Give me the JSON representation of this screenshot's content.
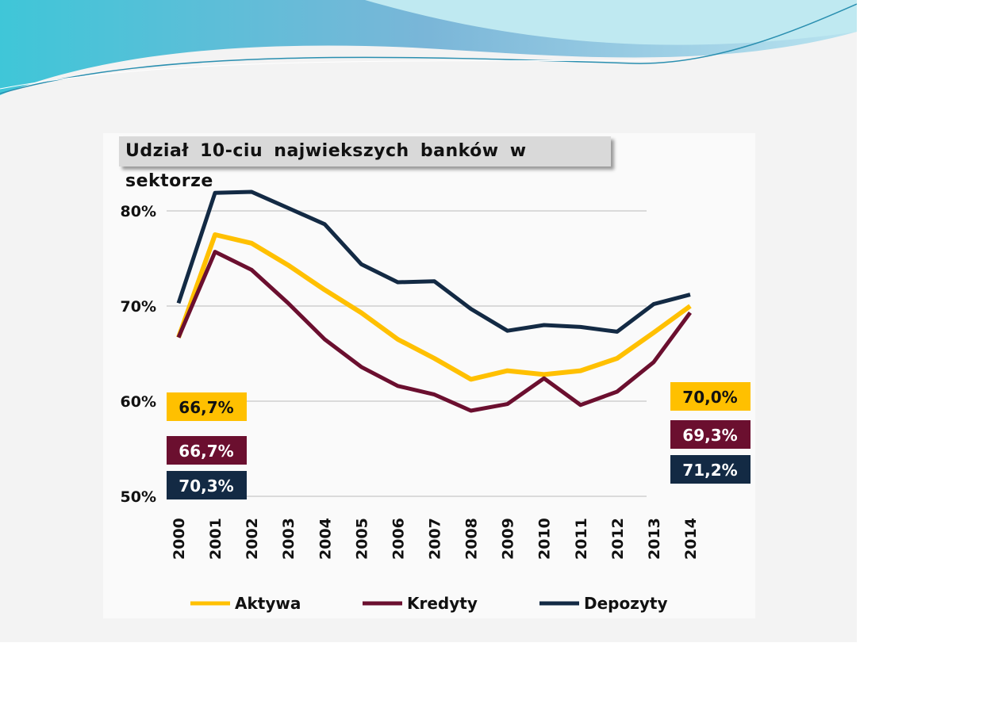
{
  "chart_data": {
    "type": "line",
    "title": "Udział 10-ciu najwiekszych banków w sektorze",
    "x": [
      "2000",
      "2001",
      "2002",
      "2003",
      "2004",
      "2005",
      "2006",
      "2007",
      "2008",
      "2009",
      "2010",
      "2011",
      "2012",
      "2013",
      "2014"
    ],
    "yticks": [
      "50%",
      "60%",
      "70%",
      "80%"
    ],
    "ytick_values": [
      50,
      60,
      70,
      80
    ],
    "ylim": [
      50,
      82
    ],
    "grid": true,
    "legend_placement": "bottom",
    "series": [
      {
        "name": "Aktywa",
        "color": "#FFC000",
        "text_color": "#111111",
        "values": [
          66.7,
          77.5,
          76.6,
          74.3,
          71.7,
          69.3,
          66.5,
          64.5,
          62.3,
          63.2,
          62.8,
          63.2,
          64.5,
          67.2,
          70.0
        ],
        "start_label": "66,7%",
        "end_label": "70,0%"
      },
      {
        "name": "Kredyty",
        "color": "#6B0F2F",
        "text_color": "#ffffff",
        "values": [
          66.7,
          75.7,
          73.8,
          70.3,
          66.5,
          63.6,
          61.6,
          60.7,
          59.0,
          59.7,
          62.4,
          59.6,
          61.0,
          64.1,
          69.3
        ],
        "start_label": "66,7%",
        "end_label": "69,3%"
      },
      {
        "name": "Depozyty",
        "color": "#132A44",
        "text_color": "#ffffff",
        "values": [
          70.3,
          81.9,
          82.0,
          80.3,
          78.6,
          74.4,
          72.5,
          72.6,
          69.7,
          67.4,
          68.0,
          67.8,
          67.3,
          70.2,
          71.2
        ],
        "start_label": "70,3%",
        "end_label": "71,2%"
      }
    ]
  }
}
